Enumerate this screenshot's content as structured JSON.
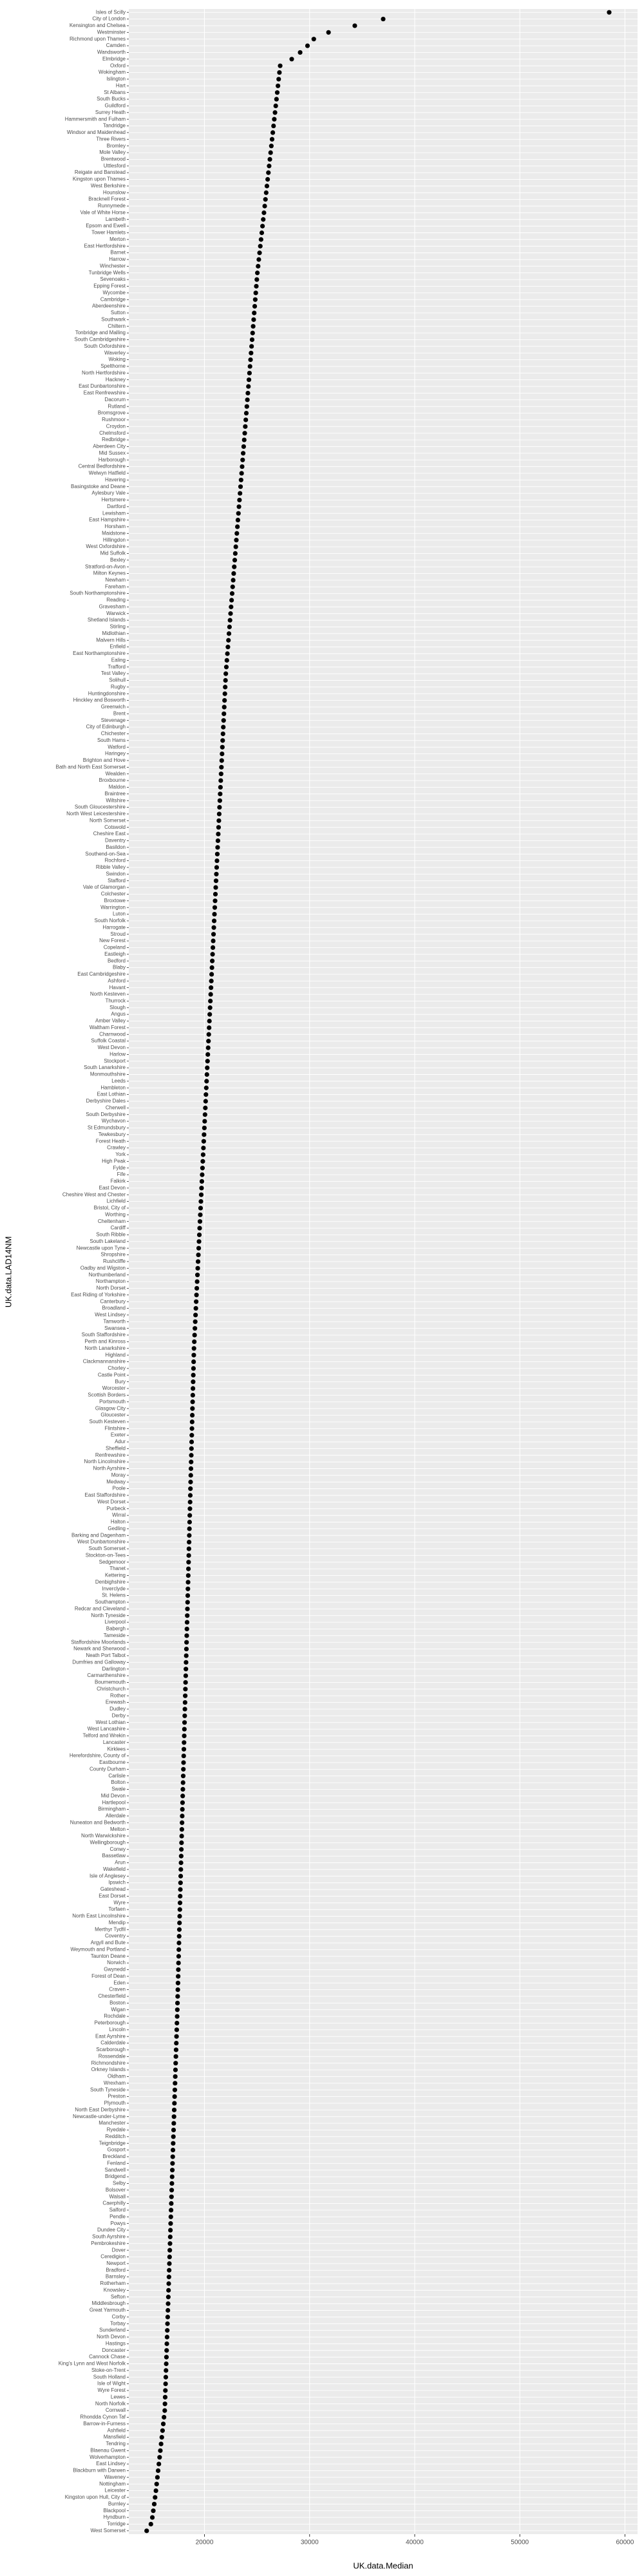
{
  "chart_data": {
    "type": "dot",
    "x_label": "UK.data.Median",
    "y_label": "UK.data.LAD14NM",
    "color": "#000000",
    "grid": true,
    "xlim": [
      12800,
      61200
    ],
    "xticks": [
      20000,
      30000,
      40000,
      50000,
      60000
    ],
    "categories": [
      "Isles of Scilly",
      "City of London",
      "Kensington and Chelsea",
      "Westminster",
      "Richmond upon Thames",
      "Camden",
      "Wandsworth",
      "Elmbridge",
      "Oxford",
      "Wokingham",
      "Islington",
      "Hart",
      "St Albans",
      "South Bucks",
      "Guildford",
      "Surrey Heath",
      "Hammersmith and Fulham",
      "Tandridge",
      "Windsor and Maidenhead",
      "Three Rivers",
      "Bromley",
      "Mole Valley",
      "Brentwood",
      "Uttlesford",
      "Reigate and Banstead",
      "Kingston upon Thames",
      "West Berkshire",
      "Hounslow",
      "Bracknell Forest",
      "Runnymede",
      "Vale of White Horse",
      "Lambeth",
      "Epsom and Ewell",
      "Tower Hamlets",
      "Merton",
      "East Hertfordshire",
      "Barnet",
      "Harrow",
      "Winchester",
      "Tunbridge Wells",
      "Sevenoaks",
      "Epping Forest",
      "Wycombe",
      "Cambridge",
      "Aberdeenshire",
      "Sutton",
      "Southwark",
      "Chiltern",
      "Tonbridge and Malling",
      "South Cambridgeshire",
      "South Oxfordshire",
      "Waverley",
      "Woking",
      "Spelthorne",
      "North Hertfordshire",
      "Hackney",
      "East Dunbartonshire",
      "East Renfrewshire",
      "Dacorum",
      "Rutland",
      "Bromsgrove",
      "Rushmoor",
      "Croydon",
      "Chelmsford",
      "Redbridge",
      "Aberdeen City",
      "Mid Sussex",
      "Harborough",
      "Central Bedfordshire",
      "Welwyn Hatfield",
      "Havering",
      "Basingstoke and Deane",
      "Aylesbury Vale",
      "Hertsmere",
      "Dartford",
      "Lewisham",
      "East Hampshire",
      "Horsham",
      "Maidstone",
      "Hillingdon",
      "West Oxfordshire",
      "Mid Suffolk",
      "Bexley",
      "Stratford-on-Avon",
      "Milton Keynes",
      "Newham",
      "Fareham",
      "South Northamptonshire",
      "Reading",
      "Gravesham",
      "Warwick",
      "Shetland Islands",
      "Stirling",
      "Midlothian",
      "Malvern Hills",
      "Enfield",
      "East Northamptonshire",
      "Ealing",
      "Trafford",
      "Test Valley",
      "Solihull",
      "Rugby",
      "Huntingdonshire",
      "Hinckley and Bosworth",
      "Greenwich",
      "Brent",
      "Stevenage",
      "City of Edinburgh",
      "Chichester",
      "South Hams",
      "Watford",
      "Haringey",
      "Brighton and Hove",
      "Bath and North East Somerset",
      "Wealden",
      "Broxbourne",
      "Maldon",
      "Braintree",
      "Wiltshire",
      "South Gloucestershire",
      "North West Leicestershire",
      "North Somerset",
      "Cotswold",
      "Cheshire East",
      "Daventry",
      "Basildon",
      "Southend-on-Sea",
      "Rochford",
      "Ribble Valley",
      "Swindon",
      "Stafford",
      "Vale of Glamorgan",
      "Colchester",
      "Broxtowe",
      "Warrington",
      "Luton",
      "South Norfolk",
      "Harrogate",
      "Stroud",
      "New Forest",
      "Copeland",
      "Eastleigh",
      "Bedford",
      "Blaby",
      "East Cambridgeshire",
      "Ashford",
      "Havant",
      "North Kesteven",
      "Thurrock",
      "Slough",
      "Angus",
      "Amber Valley",
      "Waltham Forest",
      "Charnwood",
      "Suffolk Coastal",
      "West Devon",
      "Harlow",
      "Stockport",
      "South Lanarkshire",
      "Monmouthshire",
      "Leeds",
      "Hambleton",
      "East Lothian",
      "Derbyshire Dales",
      "Cherwell",
      "South Derbyshire",
      "Wychavon",
      "St Edmundsbury",
      "Tewkesbury",
      "Forest Heath",
      "Crawley",
      "York",
      "High Peak",
      "Fylde",
      "Fife",
      "Falkirk",
      "East Devon",
      "Cheshire West and Chester",
      "Lichfield",
      "Bristol, City of",
      "Worthing",
      "Cheltenham",
      "Cardiff",
      "South Ribble",
      "South Lakeland",
      "Newcastle upon Tyne",
      "Shropshire",
      "Rushcliffe",
      "Oadby and Wigston",
      "Northumberland",
      "Northampton",
      "North Dorset",
      "East Riding of Yorkshire",
      "Canterbury",
      "Broadland",
      "West Lindsey",
      "Tamworth",
      "Swansea",
      "South Staffordshire",
      "Perth and Kinross",
      "North Lanarkshire",
      "Highland",
      "Clackmannanshire",
      "Chorley",
      "Castle Point",
      "Bury",
      "Worcester",
      "Scottish Borders",
      "Portsmouth",
      "Glasgow City",
      "Gloucester",
      "South Kesteven",
      "Flintshire",
      "Exeter",
      "Adur",
      "Sheffield",
      "Renfrewshire",
      "North Lincolnshire",
      "North Ayrshire",
      "Moray",
      "Medway",
      "Poole",
      "East Staffordshire",
      "West Dorset",
      "Purbeck",
      "Wirral",
      "Halton",
      "Gedling",
      "Barking and Dagenham",
      "West Dunbartonshire",
      "South Somerset",
      "Stockton-on-Tees",
      "Sedgemoor",
      "Thanet",
      "Kettering",
      "Denbighshire",
      "Inverclyde",
      "St. Helens",
      "Southampton",
      "Redcar and Cleveland",
      "North Tyneside",
      "Liverpool",
      "Babergh",
      "Tameside",
      "Staffordshire Moorlands",
      "Newark and Sherwood",
      "Neath Port Talbot",
      "Dumfries and Galloway",
      "Darlington",
      "Carmarthenshire",
      "Bournemouth",
      "Christchurch",
      "Rother",
      "Erewash",
      "Dudley",
      "Derby",
      "West Lothian",
      "West Lancashire",
      "Telford and Wrekin",
      "Lancaster",
      "Kirklees",
      "Herefordshire, County of",
      "Eastbourne",
      "County Durham",
      "Carlisle",
      "Bolton",
      "Swale",
      "Mid Devon",
      "Hartlepool",
      "Birmingham",
      "Allerdale",
      "Nuneaton and Bedworth",
      "Melton",
      "North Warwickshire",
      "Wellingborough",
      "Conwy",
      "Bassetlaw",
      "Arun",
      "Wakefield",
      "Isle of Anglesey",
      "Ipswich",
      "Gateshead",
      "East Dorset",
      "Wyre",
      "Torfaen",
      "North East Lincolnshire",
      "Mendip",
      "Merthyr Tydfil",
      "Coventry",
      "Argyll and Bute",
      "Weymouth and Portland",
      "Taunton Deane",
      "Norwich",
      "Gwynedd",
      "Forest of Dean",
      "Eden",
      "Craven",
      "Chesterfield",
      "Boston",
      "Wigan",
      "Rochdale",
      "Peterborough",
      "Lincoln",
      "East Ayrshire",
      "Calderdale",
      "Scarborough",
      "Rossendale",
      "Richmondshire",
      "Orkney Islands",
      "Oldham",
      "Wrexham",
      "South Tyneside",
      "Preston",
      "Plymouth",
      "North East Derbyshire",
      "Newcastle-under-Lyme",
      "Manchester",
      "Ryedale",
      "Redditch",
      "Teignbridge",
      "Gosport",
      "Breckland",
      "Fenland",
      "Sandwell",
      "Bridgend",
      "Selby",
      "Bolsover",
      "Walsall",
      "Caerphilly",
      "Salford",
      "Pendle",
      "Powys",
      "Dundee City",
      "South Ayrshire",
      "Pembrokeshire",
      "Dover",
      "Ceredigion",
      "Newport",
      "Bradford",
      "Barnsley",
      "Rotherham",
      "Knowsley",
      "Sefton",
      "Middlesbrough",
      "Great Yarmouth",
      "Corby",
      "Torbay",
      "Sunderland",
      "North Devon",
      "Hastings",
      "Doncaster",
      "Cannock Chase",
      "King's Lynn and West Norfolk",
      "Stoke-on-Trent",
      "South Holland",
      "Isle of Wight",
      "Wyre Forest",
      "Lewes",
      "North Norfolk",
      "Cornwall",
      "Rhondda Cynon Taf",
      "Barrow-in-Furness",
      "Ashfield",
      "Mansfield",
      "Tendring",
      "Blaenau Gwent",
      "Wolverhampton",
      "East Lindsey",
      "Blackburn with Darwen",
      "Waveney",
      "Nottingham",
      "Leicester",
      "Kingston upon Hull, City of",
      "Burnley",
      "Blackpool",
      "Hyndburn",
      "Torridge",
      "West Somerset"
    ],
    "values": [
      58500,
      37000,
      34300,
      31800,
      30400,
      29800,
      29100,
      28300,
      27200,
      27130,
      27060,
      26990,
      26920,
      26850,
      26780,
      26710,
      26640,
      26570,
      26500,
      26430,
      26360,
      26290,
      26220,
      26150,
      26080,
      26010,
      25940,
      25870,
      25800,
      25730,
      25660,
      25590,
      25520,
      25450,
      25380,
      25310,
      25240,
      25170,
      25100,
      25030,
      24980,
      24930,
      24880,
      24830,
      24780,
      24730,
      24680,
      24630,
      24580,
      24530,
      24480,
      24430,
      24380,
      24330,
      24280,
      24230,
      24180,
      24130,
      24080,
      24030,
      23980,
      23930,
      23880,
      23830,
      23780,
      23730,
      23680,
      23630,
      23580,
      23530,
      23480,
      23430,
      23380,
      23330,
      23280,
      23230,
      23180,
      23130,
      23080,
      23030,
      22980,
      22930,
      22880,
      22830,
      22780,
      22730,
      22680,
      22630,
      22580,
      22530,
      22480,
      22430,
      22380,
      22330,
      22280,
      22230,
      22180,
      22130,
      22080,
      22030,
      22000,
      21970,
      21940,
      21910,
      21880,
      21850,
      21820,
      21790,
      21760,
      21730,
      21700,
      21670,
      21640,
      21610,
      21580,
      21550,
      21520,
      21490,
      21460,
      21430,
      21400,
      21370,
      21340,
      21310,
      21280,
      21250,
      21220,
      21190,
      21160,
      21130,
      21100,
      21070,
      21040,
      21010,
      20980,
      20950,
      20920,
      20890,
      20860,
      20830,
      20800,
      20770,
      20740,
      20710,
      20680,
      20650,
      20620,
      20590,
      20560,
      20530,
      20500,
      20470,
      20440,
      20410,
      20380,
      20350,
      20320,
      20290,
      20260,
      20230,
      20200,
      20170,
      20140,
      20110,
      20080,
      20050,
      20020,
      19990,
      19960,
      19930,
      19900,
      19870,
      19840,
      19810,
      19780,
      19750,
      19720,
      19690,
      19660,
      19630,
      19600,
      19570,
      19540,
      19510,
      19480,
      19450,
      19420,
      19390,
      19360,
      19330,
      19300,
      19270,
      19240,
      19210,
      19180,
      19150,
      19120,
      19090,
      19060,
      19030,
      19000,
      18984,
      18968,
      18952,
      18936,
      18920,
      18904,
      18888,
      18872,
      18856,
      18840,
      18824,
      18808,
      18792,
      18776,
      18760,
      18744,
      18728,
      18712,
      18696,
      18680,
      18664,
      18648,
      18632,
      18616,
      18600,
      18584,
      18568,
      18552,
      18536,
      18520,
      18504,
      18488,
      18472,
      18456,
      18440,
      18424,
      18408,
      18392,
      18376,
      18360,
      18344,
      18328,
      18312,
      18296,
      18280,
      18264,
      18248,
      18232,
      18216,
      18200,
      18184,
      18168,
      18152,
      18136,
      18120,
      18104,
      18088,
      18072,
      18056,
      18040,
      18024,
      18008,
      17992,
      17976,
      17960,
      17944,
      17928,
      17912,
      17896,
      17880,
      17864,
      17848,
      17832,
      17816,
      17800,
      17784,
      17768,
      17752,
      17736,
      17720,
      17704,
      17688,
      17672,
      17656,
      17640,
      17624,
      17608,
      17592,
      17576,
      17560,
      17544,
      17528,
      17512,
      17496,
      17480,
      17464,
      17448,
      17432,
      17416,
      17400,
      17380,
      17360,
      17340,
      17320,
      17300,
      17280,
      17260,
      17240,
      17220,
      17200,
      17180,
      17160,
      17140,
      17120,
      17100,
      17080,
      17060,
      17040,
      17020,
      17000,
      16980,
      16960,
      16940,
      16920,
      16900,
      16880,
      16860,
      16840,
      16820,
      16800,
      16780,
      16760,
      16740,
      16720,
      16700,
      16680,
      16660,
      16640,
      16620,
      16600,
      16580,
      16560,
      16540,
      16520,
      16500,
      16480,
      16460,
      16440,
      16420,
      16400,
      16380,
      16360,
      16340,
      16320,
      16300,
      16280,
      16260,
      16240,
      16220,
      16150,
      16080,
      16010,
      15940,
      15870,
      15800,
      15730,
      15660,
      15590,
      15520,
      15450,
      15380,
      15300,
      15220,
      15130,
      15040,
      14900,
      14500
    ]
  }
}
